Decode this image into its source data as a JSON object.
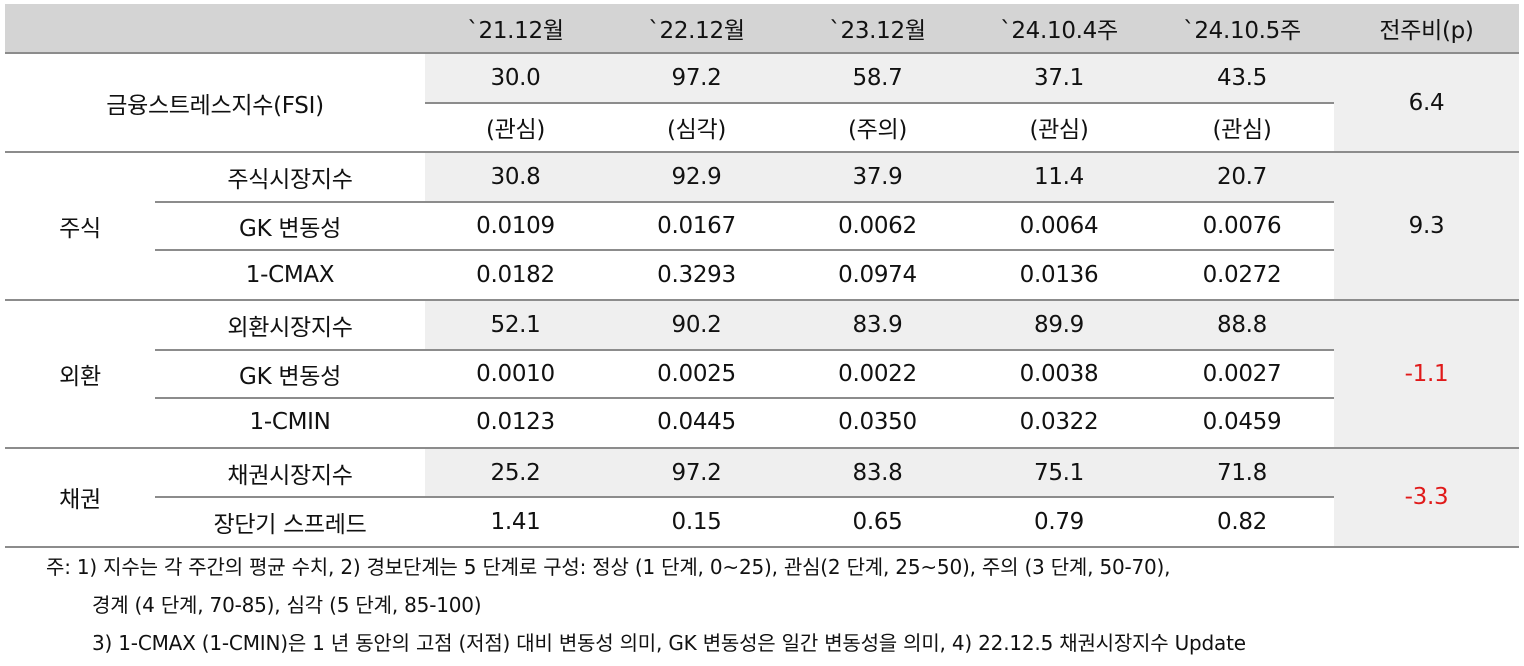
{
  "header": [
    "`21.12월",
    "`22.12월",
    "`23.12월",
    "`24.10.4주",
    "`24.10.5주",
    "전주비(p)"
  ],
  "fsi": {
    "label": "금융스트레스지수(FSI)",
    "values": [
      "30.0",
      "97.2",
      "58.7",
      "37.1",
      "43.5"
    ],
    "levels": [
      "(관심)",
      "(심각)",
      "(주의)",
      "(관심)",
      "(관심)"
    ],
    "change": "6.4"
  },
  "groups": [
    {
      "name": "주식",
      "change": "9.3",
      "change_color": "#111111",
      "rows": [
        {
          "label": "주식시장지수",
          "values": [
            "30.8",
            "92.9",
            "37.9",
            "11.4",
            "20.7"
          ]
        },
        {
          "label": "GK 변동성",
          "values": [
            "0.0109",
            "0.0167",
            "0.0062",
            "0.0064",
            "0.0076"
          ]
        },
        {
          "label": "1-CMAX",
          "values": [
            "0.0182",
            "0.3293",
            "0.0974",
            "0.0136",
            "0.0272"
          ]
        }
      ]
    },
    {
      "name": "외환",
      "change": "-1.1",
      "change_color": "#e01a1a",
      "rows": [
        {
          "label": "외환시장지수",
          "values": [
            "52.1",
            "90.2",
            "83.9",
            "89.9",
            "88.8"
          ]
        },
        {
          "label": "GK 변동성",
          "values": [
            "0.0010",
            "0.0025",
            "0.0022",
            "0.0038",
            "0.0027"
          ]
        },
        {
          "label": "1-CMIN",
          "values": [
            "0.0123",
            "0.0445",
            "0.0350",
            "0.0322",
            "0.0459"
          ]
        }
      ]
    },
    {
      "name": "채권",
      "change": "-3.3",
      "change_color": "#e01a1a",
      "rows": [
        {
          "label": "채권시장지수",
          "values": [
            "25.2",
            "97.2",
            "83.8",
            "75.1",
            "71.8"
          ]
        },
        {
          "label": "장단기 스프레드",
          "values": [
            "1.41",
            "0.15",
            "0.65",
            "0.79",
            "0.82"
          ]
        }
      ]
    }
  ],
  "notes": [
    "주: 1) 지수는 각 주간의 평균 수치, 2) 경보단계는 5 단계로 구성: 정상 (1 단계, 0~25), 관심(2 단계, 25~50), 주의 (3 단계, 50-70),",
    "경계 (4 단계, 70-85), 심각 (5 단계, 85-100)",
    "3) 1-CMAX (1-CMIN)은 1 년 동안의 고점 (저점) 대비 변동성 의미, GK 변동성은 일간 변동성을 의미, 4) 22.12.5 채권시장지수 Update"
  ]
}
